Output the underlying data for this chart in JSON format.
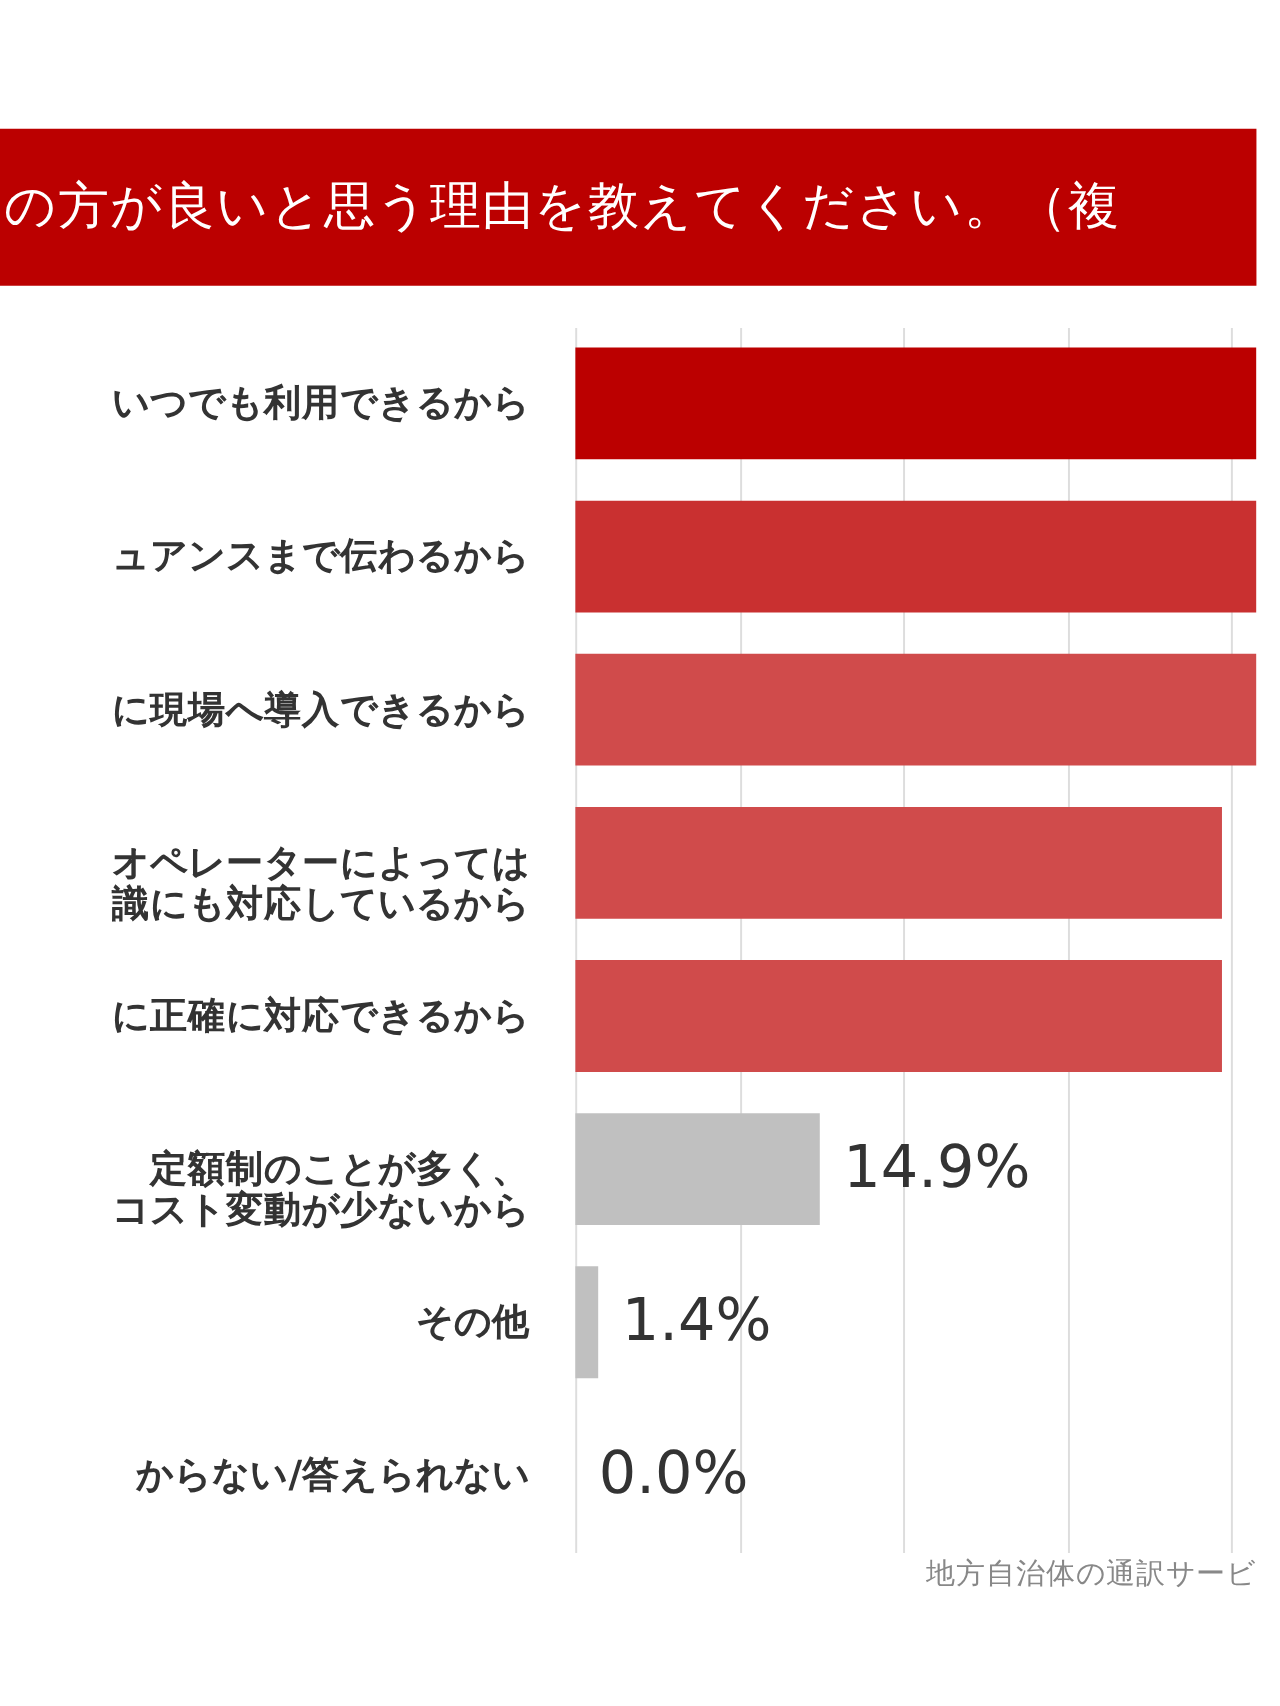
{
  "chart_data": {
    "type": "bar",
    "orientation": "horizontal",
    "title": "の方が良いと思う理由を教えてください。（複",
    "categories": [
      "いつでも利用できるから",
      "ュアンスまで伝わるから",
      "に現場へ導入できるから",
      "オペレーターによっては識にも対応しているから",
      "に正確に対応できるから",
      "定額制のことが多く、コスト変動が少ないから",
      "その他",
      "からない/答えられない"
    ],
    "values": [
      41.5,
      41.5,
      41.5,
      39.4,
      39.4,
      14.9,
      1.4,
      0.0
    ],
    "value_labels": [
      null,
      null,
      null,
      null,
      null,
      "14.9%",
      "1.4%",
      "0.0%"
    ],
    "colors": [
      "#bb0000",
      "#c93030",
      "#d04b4b",
      "#d04b4b",
      "#d04b4b",
      "#c0c0c0",
      "#c0c0c0",
      "#c0c0c0"
    ],
    "xlim": [
      0,
      41.5
    ],
    "xticks": [
      {
        "value": 0,
        "label": null
      },
      {
        "value": 10,
        "label": null
      },
      {
        "value": 20,
        "label": null
      },
      {
        "value": 30,
        "label": null
      },
      {
        "value": 40,
        "label": null
      }
    ],
    "grid": "x",
    "tick_labels": "y",
    "annotations": [
      "地方自治体の通訳サービ"
    ]
  }
}
